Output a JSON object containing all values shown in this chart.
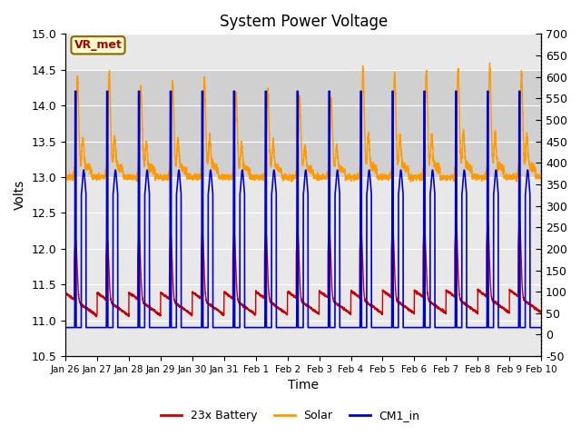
{
  "title": "System Power Voltage",
  "xlabel": "Time",
  "ylabel": "Volts",
  "ylim_left": [
    10.5,
    15.0
  ],
  "ylim_right": [
    -50,
    650
  ],
  "yticks_left": [
    10.5,
    11.0,
    11.5,
    12.0,
    12.5,
    13.0,
    13.5,
    14.0,
    14.5,
    15.0
  ],
  "xtick_labels": [
    "Jan 26",
    "Jan 27",
    "Jan 28",
    "Jan 29",
    "Jan 30",
    "Jan 31",
    "Feb 1",
    "Feb 2",
    "Feb 3",
    "Feb 4",
    "Feb 5",
    "Feb 6",
    "Feb 7",
    "Feb 8",
    "Feb 9",
    "Feb 10"
  ],
  "shaded_region": [
    13.0,
    14.5
  ],
  "legend_labels": [
    "23x Battery",
    "Solar",
    "CM1_in"
  ],
  "legend_colors": [
    "#cc0000",
    "#ff9900",
    "#0000cc"
  ],
  "vr_met_label": "VR_met",
  "vr_met_color": "#aa0000",
  "vr_met_box_facecolor": "#ffffcc",
  "vr_met_box_edgecolor": "#886600",
  "background_color": "#ffffff",
  "plot_bg_color": "#e8e8e8",
  "shaded_color": "#d0d0d0",
  "grid_color": "#ffffff",
  "title_fontsize": 12,
  "axis_fontsize": 10,
  "tick_fontsize": 9,
  "legend_fontsize": 9,
  "n_days": 15,
  "pts_per_day": 288
}
